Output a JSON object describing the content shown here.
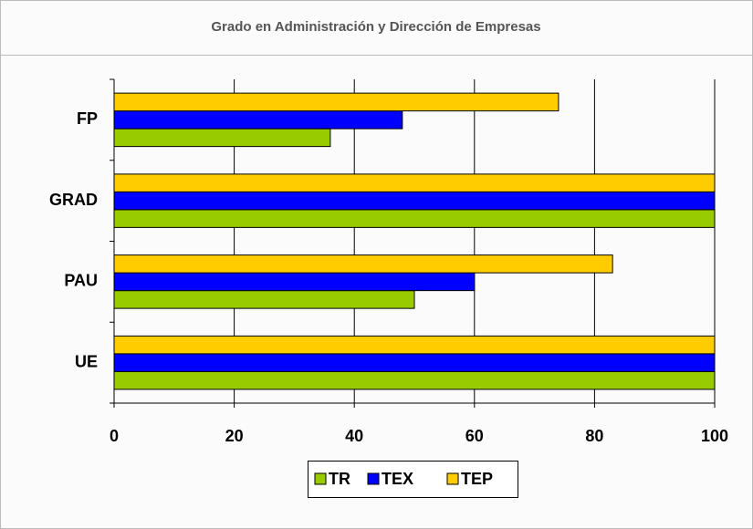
{
  "chart_data": {
    "type": "bar",
    "orientation": "horizontal",
    "title": "Grado en Administración y Dirección de Empresas",
    "categories": [
      "FP",
      "GRAD",
      "PAU",
      "UE"
    ],
    "series": [
      {
        "name": "TR",
        "color": "#99cc00",
        "values": [
          36,
          100,
          50,
          100
        ]
      },
      {
        "name": "TEX",
        "color": "#0000ff",
        "values": [
          48,
          100,
          60,
          100
        ]
      },
      {
        "name": "TEP",
        "color": "#ffcc00",
        "values": [
          74,
          100,
          83,
          100
        ]
      }
    ],
    "xlim": [
      0,
      100
    ],
    "xticks": [
      0,
      20,
      40,
      60,
      80,
      100
    ],
    "grid": true,
    "legend": "bottom"
  }
}
